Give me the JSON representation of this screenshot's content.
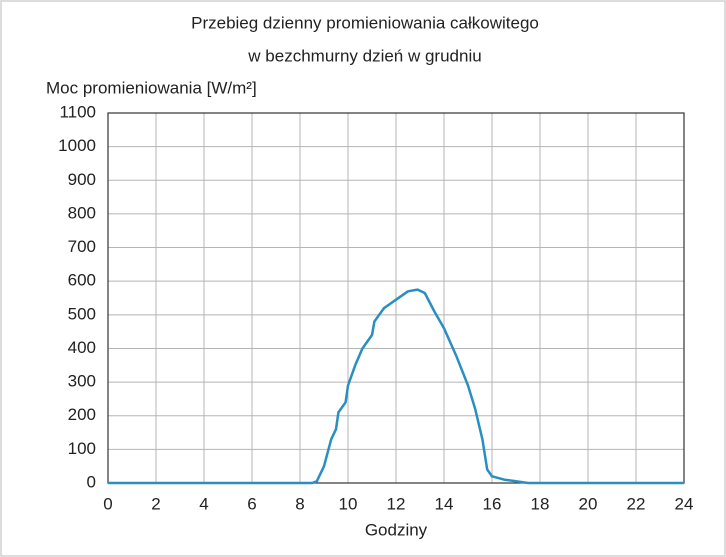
{
  "chart_data": {
    "type": "line",
    "title": [
      "Przebieg dzienny promieniowania całkowitego",
      "w bezchmurny dzień w grudniu"
    ],
    "y_label": "Moc promieniowania [W/m²]",
    "x_label": "Godziny",
    "x": [
      0,
      8.5,
      8.7,
      9.0,
      9.3,
      9.5,
      9.6,
      9.9,
      10.0,
      10.3,
      10.6,
      11.0,
      11.1,
      11.5,
      12.0,
      12.5,
      12.9,
      13.2,
      13.6,
      14.0,
      14.5,
      15.0,
      15.3,
      15.6,
      15.8,
      16.0,
      16.5,
      17.0,
      17.5,
      24
    ],
    "series": [
      {
        "name": "Moc promieniowania",
        "color": "#2a8fc0",
        "values": [
          0,
          0,
          5,
          50,
          130,
          160,
          210,
          240,
          290,
          350,
          400,
          440,
          480,
          520,
          545,
          570,
          575,
          565,
          510,
          460,
          380,
          290,
          220,
          130,
          40,
          20,
          10,
          5,
          0,
          0
        ]
      }
    ],
    "xlim": [
      0,
      24
    ],
    "xticks": [
      0,
      2,
      4,
      6,
      8,
      10,
      12,
      14,
      16,
      18,
      20,
      22,
      24
    ],
    "ylim": [
      0,
      1100
    ],
    "yticks": [
      0,
      100,
      200,
      300,
      400,
      500,
      600,
      700,
      800,
      900,
      1000,
      1100
    ],
    "grid": true
  }
}
